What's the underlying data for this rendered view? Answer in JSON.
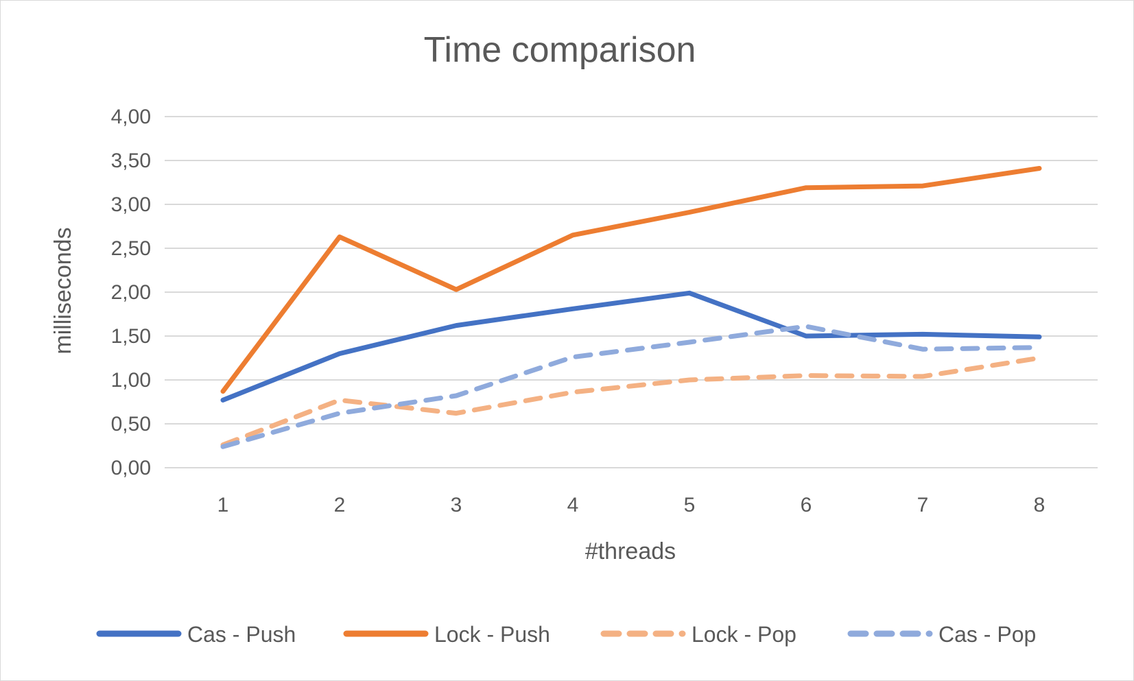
{
  "chart_data": {
    "type": "line",
    "title": "Time comparison",
    "xlabel": "#threads",
    "ylabel": "milliseconds",
    "categories": [
      "1",
      "2",
      "3",
      "4",
      "5",
      "6",
      "7",
      "8"
    ],
    "ylim": [
      0,
      4
    ],
    "yticks": [
      0,
      0.5,
      1,
      1.5,
      2,
      2.5,
      3,
      3.5,
      4
    ],
    "ytick_labels": [
      "0,00",
      "0,50",
      "1,00",
      "1,50",
      "2,00",
      "2,50",
      "3,00",
      "3,50",
      "4,00"
    ],
    "grid": true,
    "legend_position": "bottom",
    "series": [
      {
        "name": "Cas - Push",
        "values": [
          0.77,
          1.3,
          1.62,
          1.81,
          1.99,
          1.5,
          1.52,
          1.49
        ],
        "color": "#4472c4",
        "style": "solid"
      },
      {
        "name": "Lock - Push",
        "values": [
          0.87,
          2.63,
          2.03,
          2.65,
          2.91,
          3.19,
          3.21,
          3.41
        ],
        "color": "#ed7d31",
        "style": "solid"
      },
      {
        "name": "Lock - Pop",
        "values": [
          0.26,
          0.77,
          0.62,
          0.86,
          1.0,
          1.05,
          1.04,
          1.25
        ],
        "color": "#f4b183",
        "style": "dashed"
      },
      {
        "name": "Cas - Pop",
        "values": [
          0.24,
          0.62,
          0.82,
          1.26,
          1.43,
          1.61,
          1.35,
          1.37
        ],
        "color": "#8faadc",
        "style": "dashed"
      }
    ]
  }
}
